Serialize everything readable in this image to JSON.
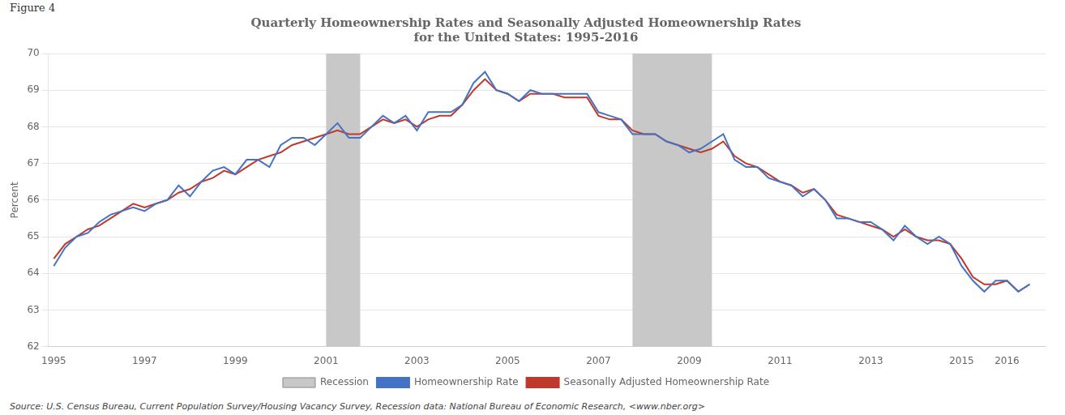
{
  "chart_data": {
    "type": "line",
    "title": [
      "Quarterly Homeownership Rates and Seasonally Adjusted Homeownership Rates",
      "for the United States: 1995-2016"
    ],
    "y_label": "Percent",
    "annotations": [
      "Figure 4",
      "Source: U.S. Census Bureau, Current Population Survey/Housing Vacancy Survey, Recession data: National Bureau of Economic Research, <www.nber.org>"
    ],
    "xlim": [
      1994.88,
      2016.85
    ],
    "xticks": [
      1995,
      1997,
      1999,
      2001,
      2003,
      2005,
      2007,
      2009,
      2011,
      2013,
      2015,
      2016
    ],
    "ylim": [
      62,
      70
    ],
    "yticks": [
      62,
      63,
      64,
      65,
      66,
      67,
      68,
      69,
      70
    ],
    "grid": "y",
    "legend": "bottom",
    "shaded_ranges": {
      "name": "Recession",
      "color": "#c8c8c8",
      "x_ranges": [
        [
          2001.0,
          2001.75
        ],
        [
          2007.75,
          2009.5
        ]
      ]
    },
    "x": [
      1995.0,
      1995.25,
      1995.5,
      1995.75,
      1996.0,
      1996.25,
      1996.5,
      1996.75,
      1997.0,
      1997.25,
      1997.5,
      1997.75,
      1998.0,
      1998.25,
      1998.5,
      1998.75,
      1999.0,
      1999.25,
      1999.5,
      1999.75,
      2000.0,
      2000.25,
      2000.5,
      2000.75,
      2001.0,
      2001.25,
      2001.5,
      2001.75,
      2002.0,
      2002.25,
      2002.5,
      2002.75,
      2003.0,
      2003.25,
      2003.5,
      2003.75,
      2004.0,
      2004.25,
      2004.5,
      2004.75,
      2005.0,
      2005.25,
      2005.5,
      2005.75,
      2006.0,
      2006.25,
      2006.5,
      2006.75,
      2007.0,
      2007.25,
      2007.5,
      2007.75,
      2008.0,
      2008.25,
      2008.5,
      2008.75,
      2009.0,
      2009.25,
      2009.5,
      2009.75,
      2010.0,
      2010.25,
      2010.5,
      2010.75,
      2011.0,
      2011.25,
      2011.5,
      2011.75,
      2012.0,
      2012.25,
      2012.5,
      2012.75,
      2013.0,
      2013.25,
      2013.5,
      2013.75,
      2014.0,
      2014.25,
      2014.5,
      2014.75,
      2015.0,
      2015.25,
      2015.5,
      2015.75,
      2016.0,
      2016.25,
      2016.5
    ],
    "series": [
      {
        "name": "Homeownership Rate",
        "color": "#4472C4",
        "values": [
          64.2,
          64.7,
          65.0,
          65.1,
          65.4,
          65.6,
          65.7,
          65.8,
          65.7,
          65.9,
          66.0,
          66.4,
          66.1,
          66.5,
          66.8,
          66.9,
          66.7,
          67.1,
          67.1,
          66.9,
          67.5,
          67.7,
          67.7,
          67.5,
          67.8,
          68.1,
          67.7,
          67.7,
          68.0,
          68.3,
          68.1,
          68.3,
          67.9,
          68.4,
          68.4,
          68.4,
          68.6,
          69.2,
          69.5,
          69.0,
          68.9,
          68.7,
          69.0,
          68.9,
          68.9,
          68.9,
          68.9,
          68.9,
          68.4,
          68.3,
          68.2,
          67.8,
          67.8,
          67.8,
          67.6,
          67.5,
          67.3,
          67.4,
          67.6,
          67.8,
          67.1,
          66.9,
          66.9,
          66.6,
          66.5,
          66.4,
          66.1,
          66.3,
          66.0,
          65.5,
          65.5,
          65.4,
          65.4,
          65.2,
          64.9,
          65.3,
          65.0,
          64.8,
          65.0,
          64.8,
          64.2,
          63.8,
          63.5,
          63.8,
          63.8,
          63.5,
          63.7
        ]
      },
      {
        "name": "Seasonally Adjusted Homeownership Rate",
        "color": "#C0392B",
        "values": [
          64.4,
          64.8,
          65.0,
          65.2,
          65.3,
          65.5,
          65.7,
          65.9,
          65.8,
          65.9,
          66.0,
          66.2,
          66.3,
          66.5,
          66.6,
          66.8,
          66.7,
          66.9,
          67.1,
          67.2,
          67.3,
          67.5,
          67.6,
          67.7,
          67.8,
          67.9,
          67.8,
          67.8,
          68.0,
          68.2,
          68.1,
          68.2,
          68.0,
          68.2,
          68.3,
          68.3,
          68.6,
          69.0,
          69.3,
          69.0,
          68.9,
          68.7,
          68.9,
          68.9,
          68.9,
          68.8,
          68.8,
          68.8,
          68.3,
          68.2,
          68.2,
          67.9,
          67.8,
          67.8,
          67.6,
          67.5,
          67.4,
          67.3,
          67.4,
          67.6,
          67.2,
          67.0,
          66.9,
          66.7,
          66.5,
          66.4,
          66.2,
          66.3,
          66.0,
          65.6,
          65.5,
          65.4,
          65.3,
          65.2,
          65.0,
          65.2,
          65.0,
          64.9,
          64.9,
          64.8,
          64.4,
          63.9,
          63.7,
          63.7,
          63.8,
          63.5,
          63.7
        ]
      }
    ]
  }
}
